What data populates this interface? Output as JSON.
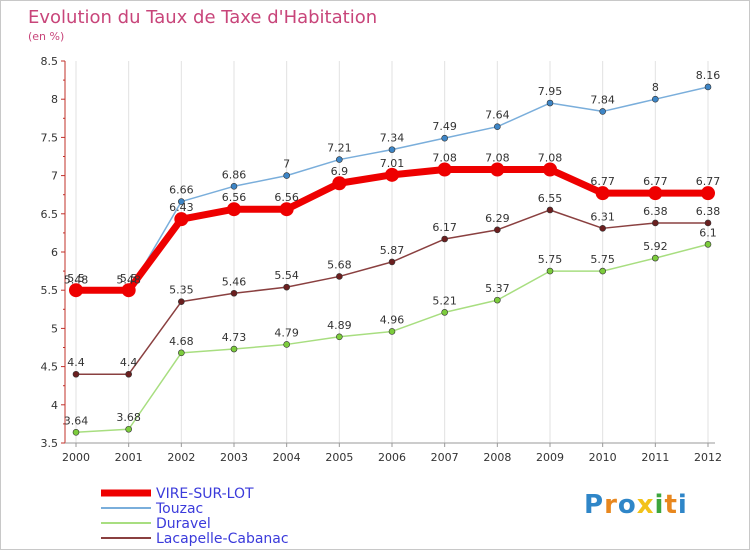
{
  "header": {
    "title": "Evolution du Taux de Taxe d'Habitation",
    "unit": "(en %)"
  },
  "logo": {
    "text": "Proxiti",
    "colors": [
      "#2f86c8",
      "#e8871e",
      "#2f86c8",
      "#f2c21a",
      "#3da63d",
      "#e8871e",
      "#2f86c8"
    ]
  },
  "chart_data": {
    "type": "line",
    "x": [
      "2000",
      "2001",
      "2002",
      "2003",
      "2004",
      "2005",
      "2006",
      "2007",
      "2008",
      "2009",
      "2010",
      "2011",
      "2012"
    ],
    "yticks": [
      "3.5",
      "4",
      "4.5",
      "5",
      "5.5",
      "6",
      "6.5",
      "7",
      "7.5",
      "8",
      "8.5"
    ],
    "ylim": [
      3.5,
      8.5
    ],
    "grid": "vertical",
    "legend_position": "bottom-left",
    "series": [
      {
        "name": "Touzac",
        "color": "#7aaedb",
        "marker_color": "#3d85c6",
        "width": 1.5,
        "values": [
          5.48,
          5.48,
          6.66,
          6.86,
          7,
          7.21,
          7.34,
          7.49,
          7.64,
          7.95,
          7.84,
          8,
          8.16
        ],
        "labels": [
          "5.48",
          "5.48",
          "6.66",
          "6.86",
          "7",
          "7.21",
          "7.34",
          "7.49",
          "7.64",
          "7.95",
          "7.84",
          "8",
          "8.16"
        ]
      },
      {
        "name": "Duravel",
        "color": "#a8de80",
        "marker_color": "#7ccc3c",
        "width": 1.5,
        "values": [
          3.64,
          3.68,
          4.68,
          4.73,
          4.79,
          4.89,
          4.96,
          5.21,
          5.37,
          5.75,
          5.75,
          5.92,
          6.1
        ],
        "labels": [
          "3.64",
          "3.68",
          "4.68",
          "4.73",
          "4.79",
          "4.89",
          "4.96",
          "5.21",
          "5.37",
          "5.75",
          "5.75",
          "5.92",
          "6.1"
        ]
      },
      {
        "name": "Lacapelle-Cabanac",
        "color": "#8a4040",
        "marker_color": "#6b1f1f",
        "width": 1.5,
        "values": [
          4.4,
          4.4,
          5.35,
          5.46,
          5.54,
          5.68,
          5.87,
          6.17,
          6.29,
          6.55,
          6.31,
          6.38,
          6.38
        ],
        "labels": [
          "4.4",
          "4.4",
          "5.35",
          "5.46",
          "5.54",
          "5.68",
          "5.87",
          "6.17",
          "6.29",
          "6.55",
          "6.31",
          "6.38",
          "6.38"
        ]
      },
      {
        "name": "VIRE-SUR-LOT",
        "color": "#ee0000",
        "marker_color": "#ee0000",
        "width": 7,
        "values": [
          5.5,
          5.5,
          6.43,
          6.56,
          6.56,
          6.9,
          7.01,
          7.08,
          7.08,
          7.08,
          6.77,
          6.77,
          6.77
        ],
        "labels": [
          "5.5",
          "5.5",
          "6.43",
          "6.56",
          "6.56",
          "6.9",
          "7.01",
          "7.08",
          "7.08",
          "7.08",
          "6.77",
          "6.77",
          "6.77"
        ]
      }
    ],
    "legend": [
      {
        "name": "VIRE-SUR-LOT",
        "color": "#ee0000"
      },
      {
        "name": "Touzac",
        "color": "#7aaedb"
      },
      {
        "name": "Duravel",
        "color": "#a8de80"
      },
      {
        "name": "Lacapelle-Cabanac",
        "color": "#8a4040"
      }
    ],
    "legend_text_color": "#3b3bdb"
  }
}
